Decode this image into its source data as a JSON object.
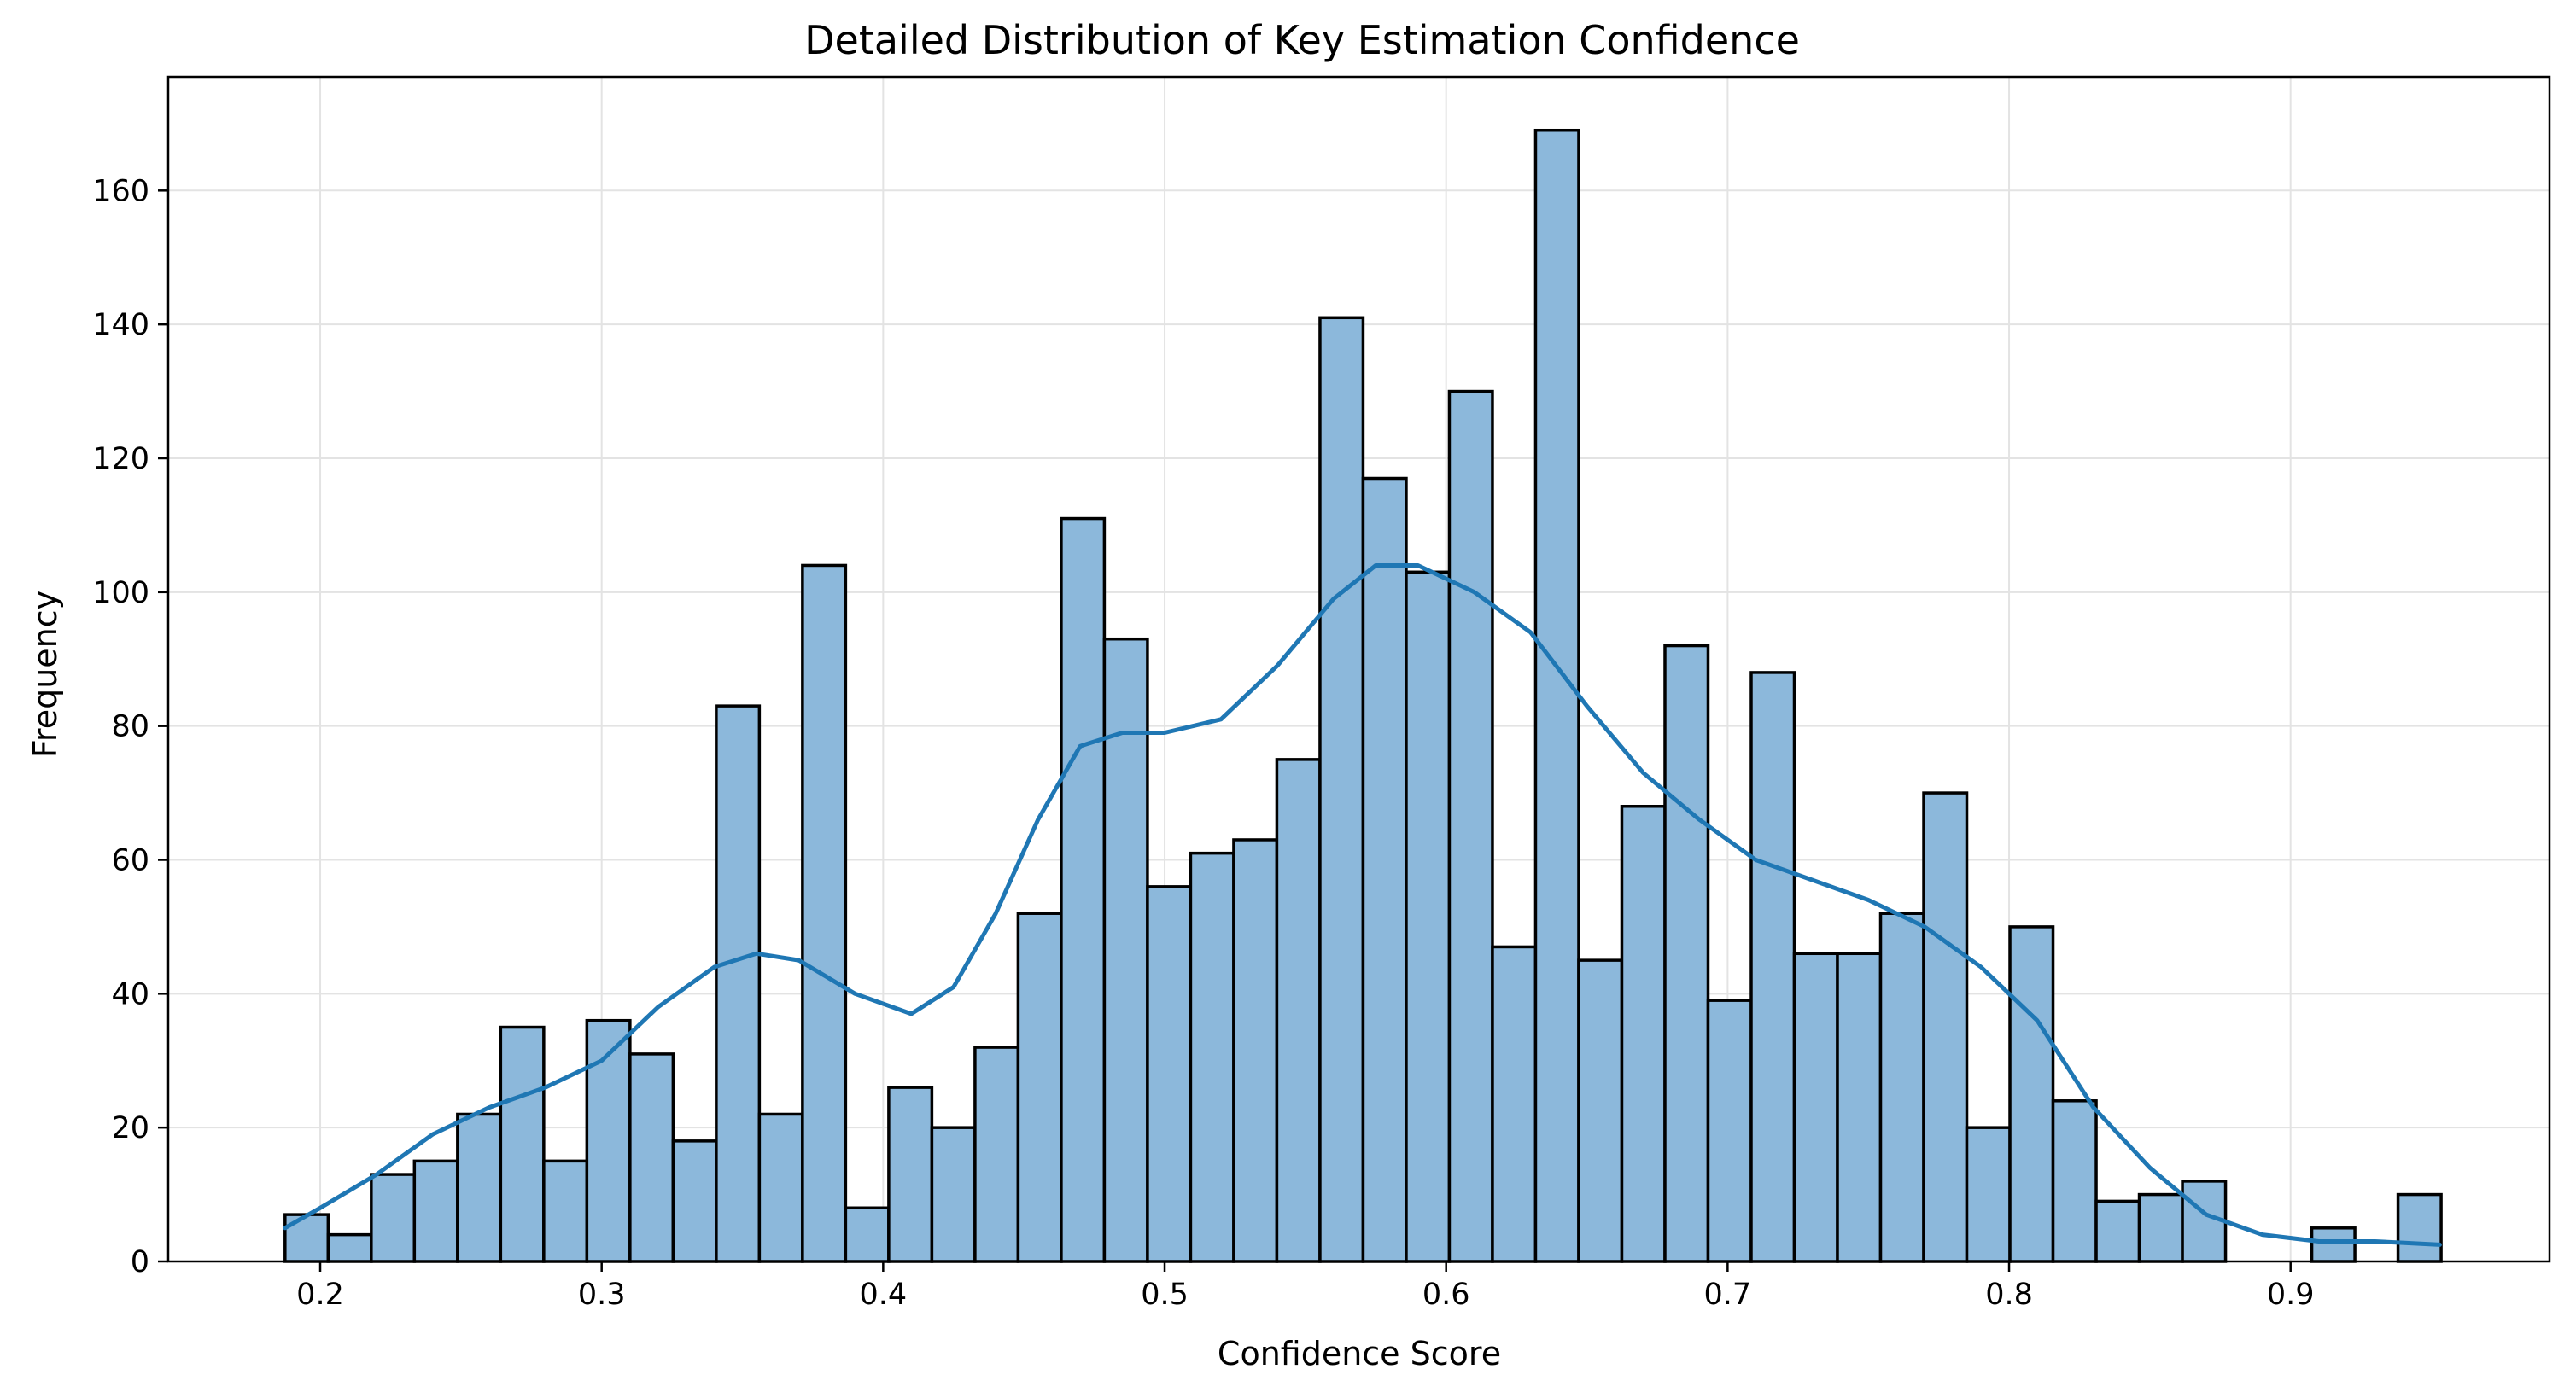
{
  "chart_data": {
    "type": "bar",
    "title": "Detailed Distribution of Key Estimation Confidence",
    "xlabel": "Confidence Score",
    "ylabel": "Frequency",
    "xlim": [
      0.146,
      0.992
    ],
    "ylim": [
      0,
      177
    ],
    "x_ticks": [
      0.2,
      0.3,
      0.4,
      0.5,
      0.6,
      0.7,
      0.8,
      0.9
    ],
    "x_tick_labels": [
      "0.2",
      "0.3",
      "0.4",
      "0.5",
      "0.6",
      "0.7",
      "0.8",
      "0.9"
    ],
    "y_ticks": [
      0,
      20,
      40,
      60,
      80,
      100,
      120,
      140,
      160
    ],
    "y_tick_labels": [
      "0",
      "20",
      "40",
      "60",
      "80",
      "100",
      "120",
      "140",
      "160"
    ],
    "grid": true,
    "bin_start": 0.1875,
    "bin_width": 0.01532,
    "values": [
      7,
      4,
      13,
      15,
      22,
      35,
      15,
      36,
      31,
      18,
      83,
      22,
      104,
      8,
      26,
      20,
      32,
      52,
      111,
      93,
      56,
      61,
      63,
      75,
      141,
      117,
      103,
      130,
      47,
      169,
      45,
      68,
      92,
      39,
      88,
      46,
      46,
      52,
      70,
      20,
      50,
      24,
      9,
      10,
      12,
      0,
      0,
      5,
      0,
      10
    ],
    "kde": {
      "x": [
        0.1875,
        0.2,
        0.22,
        0.24,
        0.26,
        0.28,
        0.3,
        0.32,
        0.34,
        0.355,
        0.37,
        0.39,
        0.41,
        0.425,
        0.44,
        0.455,
        0.47,
        0.485,
        0.5,
        0.52,
        0.54,
        0.56,
        0.575,
        0.59,
        0.61,
        0.63,
        0.65,
        0.67,
        0.69,
        0.71,
        0.73,
        0.75,
        0.77,
        0.79,
        0.81,
        0.83,
        0.85,
        0.87,
        0.89,
        0.91,
        0.93,
        0.953
      ],
      "y": [
        5,
        8,
        13,
        19,
        23,
        26,
        30,
        38,
        44,
        46,
        45,
        40,
        37,
        41,
        52,
        66,
        77,
        79,
        79,
        81,
        89,
        99,
        104,
        104,
        100,
        94,
        83,
        73,
        66,
        60,
        57,
        54,
        50,
        44,
        36,
        23,
        14,
        7,
        4,
        3,
        3,
        2.5
      ]
    }
  }
}
